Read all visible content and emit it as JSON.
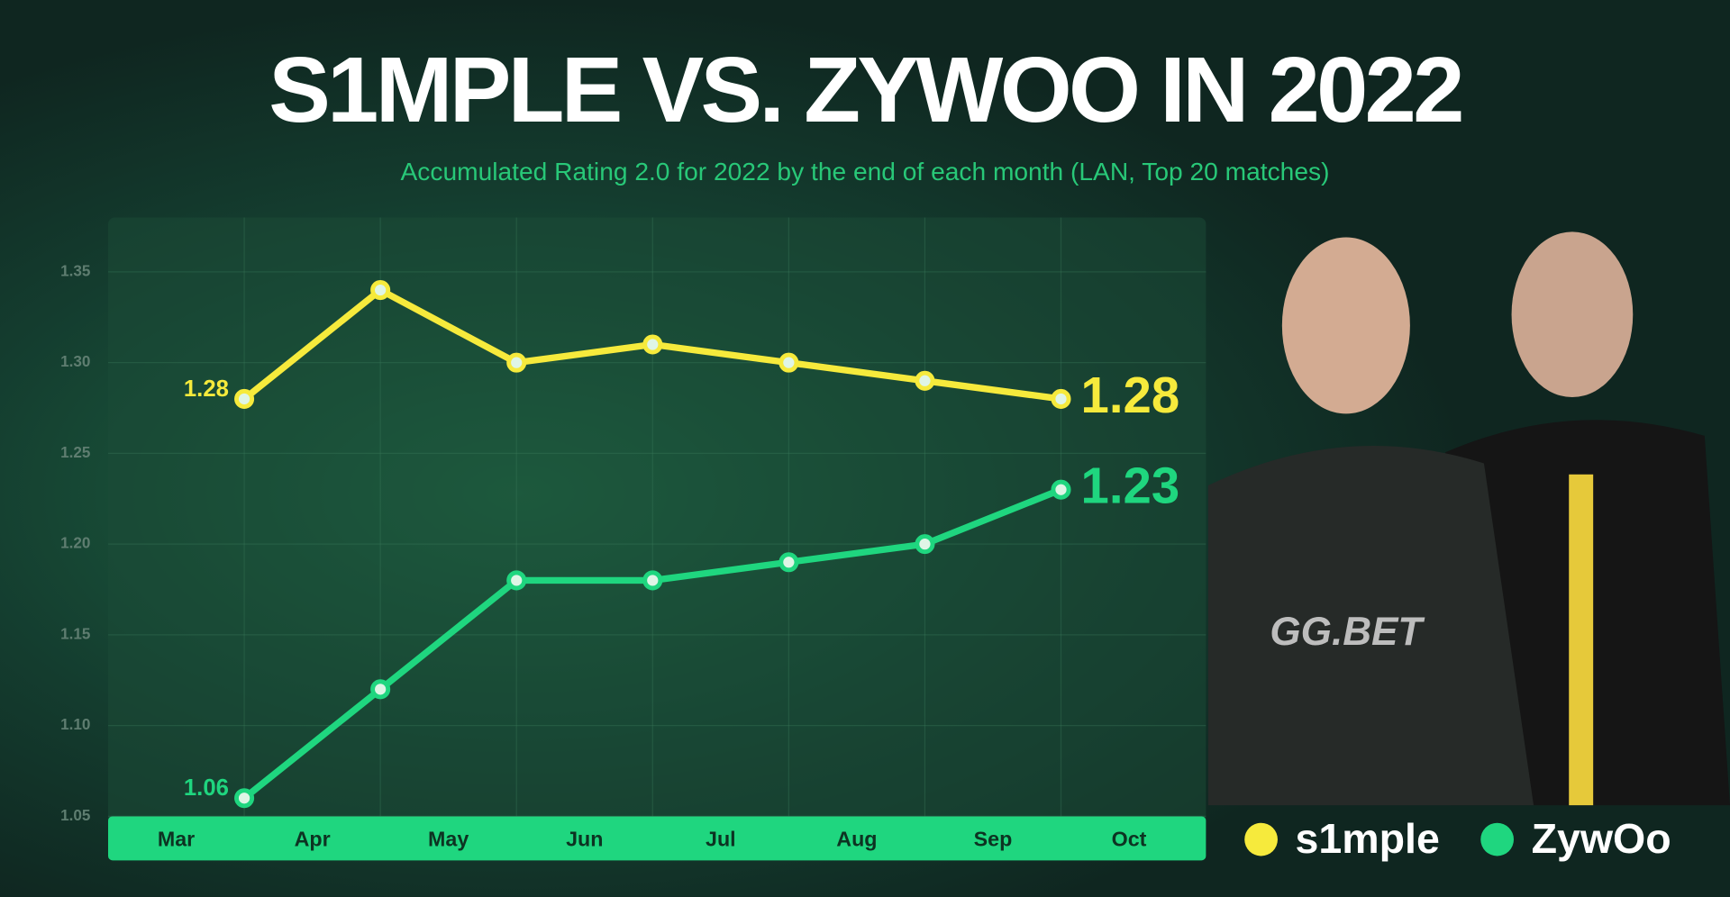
{
  "chart_data": {
    "type": "line",
    "title": "S1MPLE VS. ZYWOO IN 2022",
    "subtitle": "Accumulated Rating 2.0 for 2022 by the end of each month (LAN, Top 20 matches)",
    "categories": [
      "Mar",
      "Apr",
      "May",
      "Jun",
      "Jul",
      "Aug",
      "Sep",
      "Oct"
    ],
    "series": [
      {
        "name": "s1mple",
        "color": "#f6ea3c",
        "values": [
          1.28,
          1.34,
          1.3,
          1.31,
          1.3,
          1.29,
          1.28,
          null
        ]
      },
      {
        "name": "ZywOo",
        "color": "#1fd67f",
        "values": [
          1.06,
          1.12,
          1.18,
          1.18,
          1.19,
          1.2,
          1.23,
          null
        ]
      }
    ],
    "ylim": [
      1.05,
      1.38
    ],
    "yticks": [
      1.05,
      {
        "value": 1.1,
        "label": "1.10"
      },
      1.15,
      {
        "value": 1.2,
        "label": "1.20"
      },
      1.25,
      {
        "value": 1.3,
        "label": "1.30"
      },
      1.35
    ],
    "grid": true
  }
}
